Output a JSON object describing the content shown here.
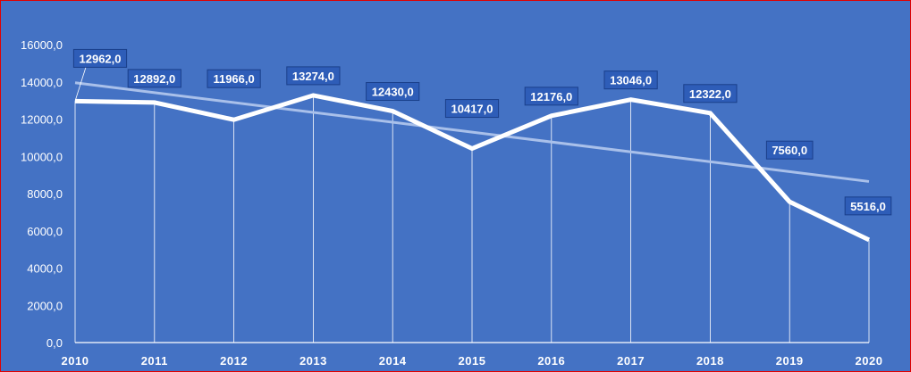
{
  "chart_data": {
    "type": "line",
    "title": "",
    "xlabel": "",
    "ylabel": "",
    "x": [
      "2010",
      "2011",
      "2012",
      "2013",
      "2014",
      "2015",
      "2016",
      "2017",
      "2018",
      "2019",
      "2020"
    ],
    "series": [
      {
        "values": [
          12962,
          12892,
          11966,
          13274,
          12430,
          10417,
          12176,
          13046,
          12322,
          7560,
          5516
        ],
        "labels": [
          "12962,0",
          "12892,0",
          "11966,0",
          "13274,0",
          "12430,0",
          "10417,0",
          "12176,0",
          "13046,0",
          "12322,0",
          "7560,0",
          "5516,0"
        ]
      }
    ],
    "trendline": {
      "type": "linear",
      "start": 13950,
      "end": 8650
    },
    "ylim": [
      0,
      16000
    ],
    "yticks": [
      0,
      2000,
      4000,
      6000,
      8000,
      10000,
      12000,
      14000,
      16000
    ],
    "ytick_labels": [
      "0,0",
      "2000,0",
      "4000,0",
      "6000,0",
      "8000,0",
      "10000,0",
      "12000,0",
      "14000,0",
      "16000,0"
    ],
    "grid": false,
    "drop_lines": true,
    "colors": {
      "background": "#4472c4",
      "line": "#ffffff",
      "trend": "#a9c0ea",
      "label_box": "#2e5db8",
      "label_border": "#1a3f8a",
      "frame": "#e00000"
    }
  }
}
